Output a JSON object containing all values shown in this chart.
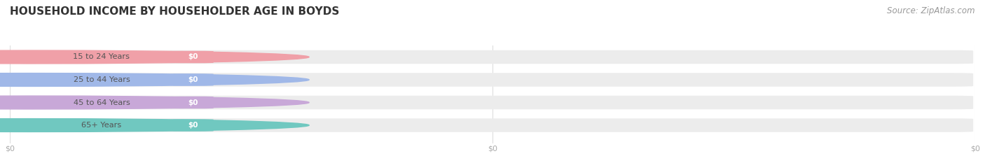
{
  "title": "HOUSEHOLD INCOME BY HOUSEHOLDER AGE IN BOYDS",
  "source_text": "Source: ZipAtlas.com",
  "categories": [
    "15 to 24 Years",
    "25 to 44 Years",
    "45 to 64 Years",
    "65+ Years"
  ],
  "values": [
    0,
    0,
    0,
    0
  ],
  "bar_colors": [
    "#f0a0a8",
    "#a0b8e8",
    "#c8a8d8",
    "#70c8c0"
  ],
  "bar_bg_color": "#ececec",
  "fig_bg_color": "#ffffff",
  "title_fontsize": 11,
  "source_fontsize": 8.5,
  "bar_height": 0.6,
  "tick_color": "#aaaaaa",
  "label_text_color": "#555555",
  "value_text_color": "#ffffff",
  "grid_color": "#dddddd"
}
